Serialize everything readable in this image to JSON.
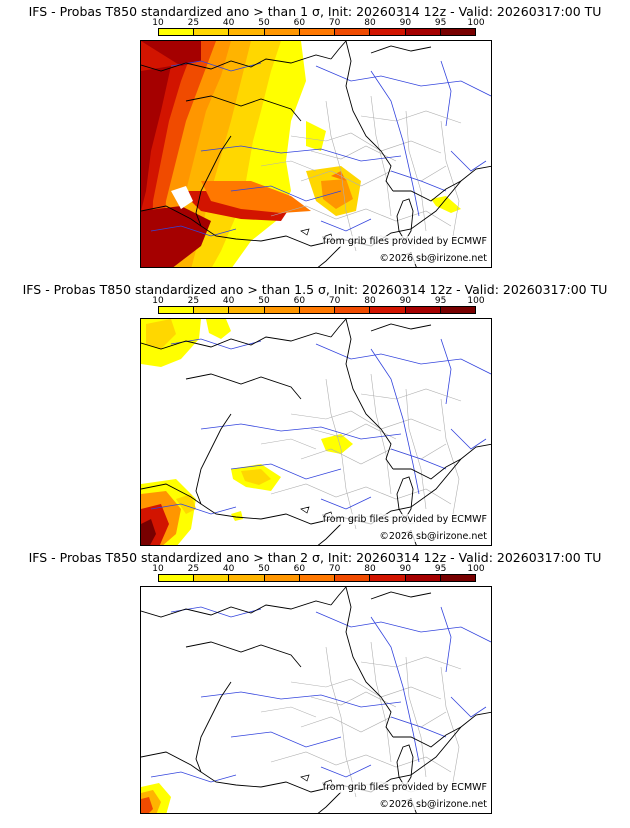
{
  "legend": {
    "labels": [
      "10",
      "25",
      "40",
      "50",
      "60",
      "70",
      "80",
      "90",
      "95",
      "100"
    ],
    "colors": [
      "#ffff00",
      "#ffd700",
      "#ffb400",
      "#ff9600",
      "#ff7800",
      "#f04b00",
      "#d21400",
      "#a50000",
      "#780000"
    ]
  },
  "panels": [
    {
      "title": "IFS - Probas T850  standardized ano > than 1 σ, Init: 20260314 12z - Valid: 20260317:00 TU",
      "credit_source": "from grib files provided by ECMWF",
      "credit_copy": "©2026 sb@irizone.net"
    },
    {
      "title": "IFS - Probas T850  standardized ano > than 1.5 σ, Init: 20260314 12z - Valid: 20260317:00 TU",
      "credit_source": "from grib files provided by ECMWF",
      "credit_copy": "©2026 sb@irizone.net"
    },
    {
      "title": "IFS - Probas T850  standardized ano > than 2 σ, Init: 20260314 12z - Valid: 20260317:00 TU",
      "credit_source": "from grib files provided by ECMWF",
      "credit_copy": "©2026 sb@irizone.net"
    }
  ]
}
